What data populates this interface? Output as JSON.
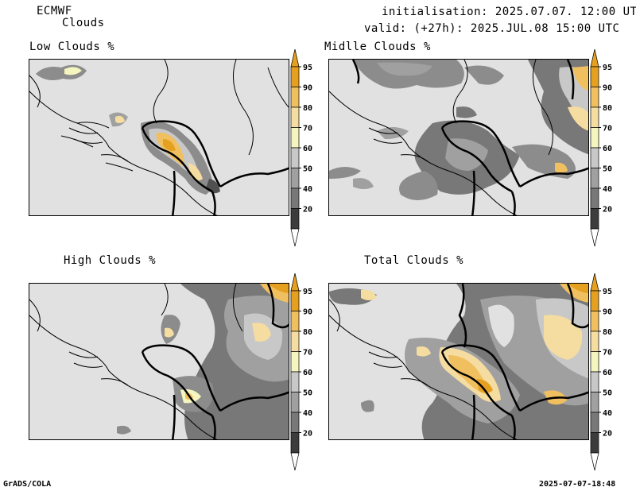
{
  "header": {
    "model": "ECMWF",
    "product": "Clouds",
    "init": "initialisation: 2025.07.07. 12:00 UTC",
    "valid": "valid: (+27h): 2025.JUL.08 15:00 UTC"
  },
  "panels": [
    {
      "title": "Low Clouds %"
    },
    {
      "title": "Midlle Clouds %"
    },
    {
      "title": "High Clouds %"
    },
    {
      "title": "Total Clouds %"
    }
  ],
  "colorbar": {
    "ticks": [
      "20",
      "40",
      "50",
      "60",
      "70",
      "80",
      "90",
      "95"
    ],
    "colors": [
      "#ffffff",
      "#3c3c3c",
      "#787878",
      "#a0a0a0",
      "#c8c8c8",
      "#f5f5c0",
      "#f5dca0",
      "#f0c060",
      "#e6a020",
      "#ffffff"
    ]
  },
  "footer": {
    "left": "GrADS/COLA",
    "right": "2025-07-07-18:48"
  }
}
